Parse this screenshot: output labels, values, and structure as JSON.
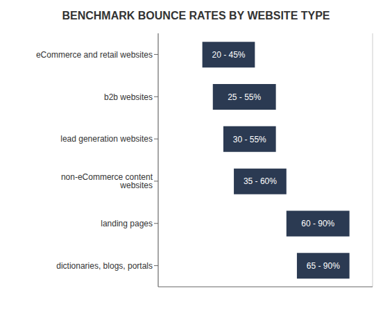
{
  "chart_data": {
    "type": "bar",
    "orientation": "horizontal",
    "title": "BENCHMARK BOUNCE RATES BY WEBSITE TYPE",
    "categories": [
      "eCommerce and retail websites",
      "b2b websites",
      "lead generation websites",
      "non-eCommerce content websites",
      "landing pages",
      "dictionaries, blogs, portals"
    ],
    "values": [
      [
        20,
        45
      ],
      [
        25,
        55
      ],
      [
        30,
        55
      ],
      [
        35,
        60
      ],
      [
        60,
        90
      ],
      [
        65,
        90
      ]
    ],
    "value_labels": [
      "20 - 45%",
      "25 - 55%",
      "30 - 55%",
      "35 - 60%",
      "60 - 90%",
      "65 - 90%"
    ],
    "data_labels": true,
    "color": "#2b3a52",
    "xlim": [
      -1,
      101
    ],
    "xticks": [
      0,
      10,
      20,
      30,
      40,
      50,
      60,
      70,
      80,
      90,
      100
    ],
    "tick_labels": false,
    "grid": true
  }
}
